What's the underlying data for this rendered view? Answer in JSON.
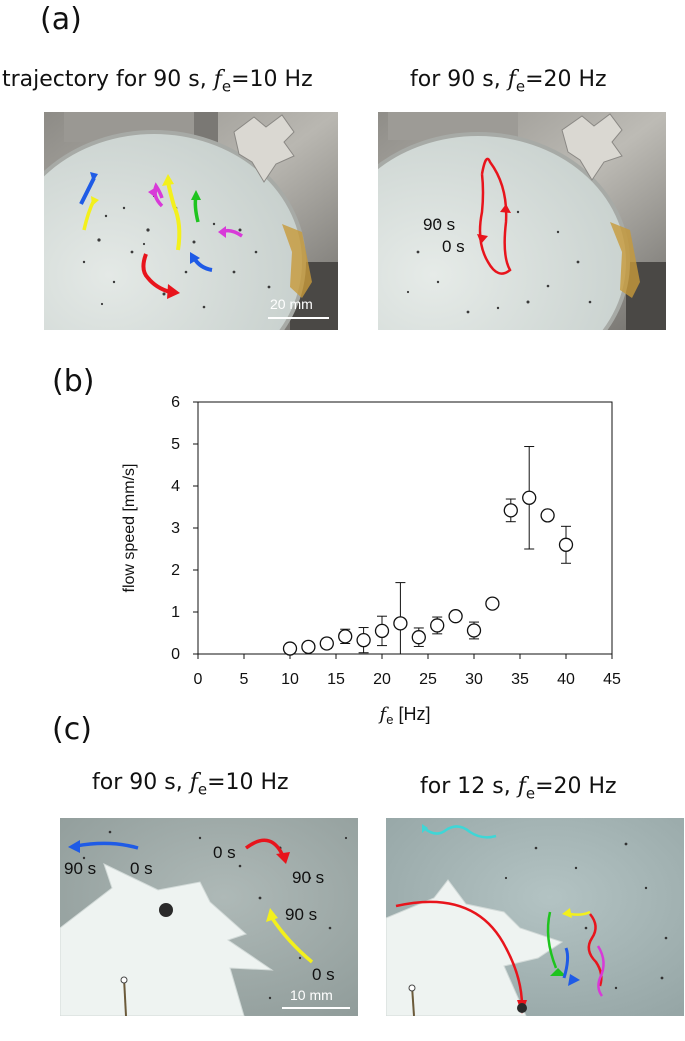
{
  "panels": {
    "a": {
      "label": "(a)",
      "left_caption": {
        "prefix": "trajectory for 90 s, ",
        "var": "f",
        "sub": "e",
        "suffix": "=10 Hz"
      },
      "right_caption": {
        "prefix": "for 90 s, ",
        "var": "f",
        "sub": "e",
        "suffix": "=20 Hz"
      },
      "scale_bar": "20 mm",
      "right_annotations": [
        "90 s",
        "0 s"
      ]
    },
    "b": {
      "label": "(b)"
    },
    "c": {
      "label": "(c)",
      "left_caption": {
        "prefix": "for 90 s, ",
        "var": "f",
        "sub": "e",
        "suffix": "=10 Hz"
      },
      "right_caption": {
        "prefix": "for 12 s, ",
        "var": "f",
        "sub": "e",
        "suffix": "=20 Hz"
      },
      "left_annotations": {
        "blue_end": "90 s",
        "blue_start": "0 s",
        "red_start": "0 s",
        "red_end": "90 s",
        "yellow_end": "90 s",
        "yellow_start": "0 s"
      },
      "scale_bar": "10 mm"
    }
  },
  "colors": {
    "trajectory_red": "#e8141c",
    "trajectory_yellow": "#f3f01c",
    "trajectory_blue": "#1f5be6",
    "trajectory_green": "#1ec41e",
    "trajectory_magenta": "#d83ad8",
    "trajectory_cyan": "#3fd6d6"
  },
  "chart_data": {
    "type": "scatter",
    "xlabel_var": "f",
    "xlabel_sub": "e",
    "xlabel_unit": " [Hz]",
    "ylabel": "flow speed [mm/s]",
    "xlim": [
      0,
      45
    ],
    "ylim": [
      0,
      6
    ],
    "xticks": [
      0,
      5,
      10,
      15,
      20,
      25,
      30,
      35,
      40,
      45
    ],
    "yticks": [
      0,
      1,
      2,
      3,
      4,
      5,
      6
    ],
    "marker": "open-circle",
    "series": [
      {
        "points": [
          {
            "x": 10,
            "y": 0.13,
            "err": 0
          },
          {
            "x": 12,
            "y": 0.17,
            "err": 0
          },
          {
            "x": 14,
            "y": 0.25,
            "err": 0.12
          },
          {
            "x": 16,
            "y": 0.42,
            "err": 0.17
          },
          {
            "x": 18,
            "y": 0.33,
            "err": 0.3
          },
          {
            "x": 20,
            "y": 0.55,
            "err": 0.35
          },
          {
            "x": 22,
            "y": 0.73,
            "err": 0.97
          },
          {
            "x": 24,
            "y": 0.4,
            "err": 0.22
          },
          {
            "x": 26,
            "y": 0.68,
            "err": 0.2
          },
          {
            "x": 28,
            "y": 0.9,
            "err": 0.05
          },
          {
            "x": 30,
            "y": 0.56,
            "err": 0.2
          },
          {
            "x": 32,
            "y": 1.2,
            "err": 0
          },
          {
            "x": 34,
            "y": 3.42,
            "err": 0.27
          },
          {
            "x": 36,
            "y": 3.72,
            "err": 1.22
          },
          {
            "x": 38,
            "y": 3.3,
            "err": 0
          },
          {
            "x": 40,
            "y": 2.6,
            "err": 0.44
          }
        ]
      }
    ]
  }
}
